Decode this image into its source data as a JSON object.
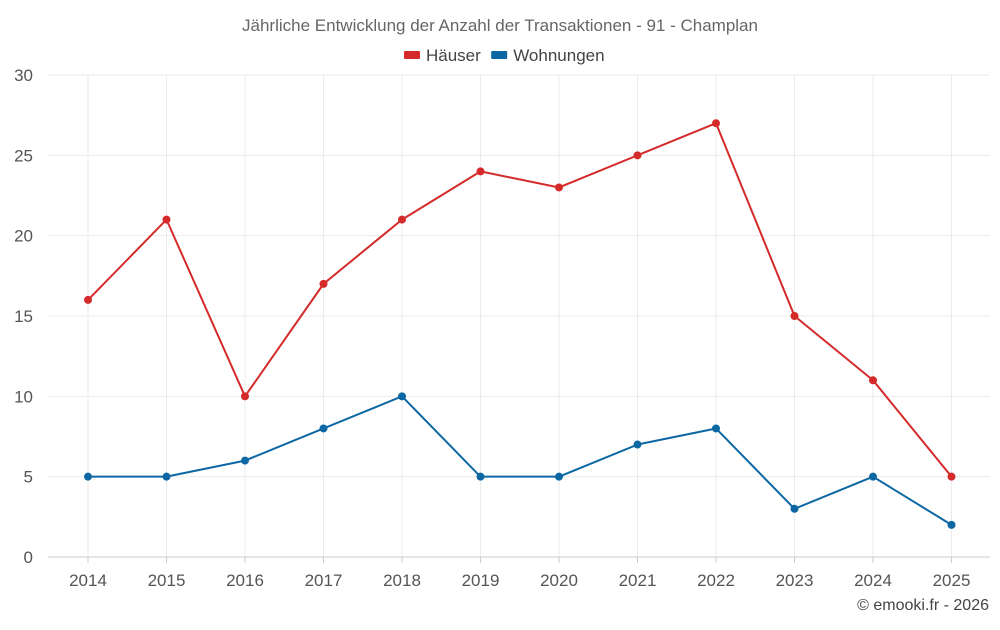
{
  "chart_data": {
    "type": "line",
    "title": "Jährliche Entwicklung der Anzahl der Transaktionen - 91 - Champlan",
    "categories": [
      "2014",
      "2015",
      "2016",
      "2017",
      "2018",
      "2019",
      "2020",
      "2021",
      "2022",
      "2023",
      "2024",
      "2025"
    ],
    "series": [
      {
        "name": "Häuser",
        "color": "#d42a2a",
        "values": [
          16,
          21,
          10,
          17,
          21,
          24,
          23,
          25,
          27,
          15,
          11,
          5
        ]
      },
      {
        "name": "Wohnungen",
        "color": "#0c67a3",
        "values": [
          5,
          5,
          6,
          8,
          10,
          5,
          5,
          7,
          8,
          3,
          5,
          2
        ]
      }
    ],
    "ylim": [
      0,
      30
    ],
    "yticks": [
      0,
      5,
      10,
      15,
      20,
      25,
      30
    ],
    "grid": true,
    "legend": "top-center"
  },
  "credit": "© emooki.fr - 2026"
}
